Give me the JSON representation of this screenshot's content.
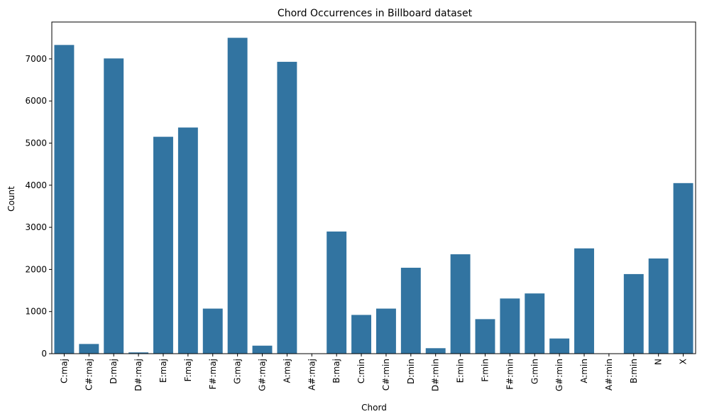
{
  "chart_data": {
    "type": "bar",
    "title": "Chord Occurrences in Billboard dataset",
    "xlabel": "Chord",
    "ylabel": "Count",
    "ylim": [
      0,
      7875
    ],
    "yticks": [
      0,
      1000,
      2000,
      3000,
      4000,
      5000,
      6000,
      7000
    ],
    "bar_color": "#3274a1",
    "grid": false,
    "categories": [
      "C:maj",
      "C#:maj",
      "D:maj",
      "D#:maj",
      "E:maj",
      "F:maj",
      "F#:maj",
      "G:maj",
      "G#:maj",
      "A:maj",
      "A#:maj",
      "B:maj",
      "C:min",
      "C#:min",
      "D:min",
      "D#:min",
      "E:min",
      "F:min",
      "F#:min",
      "G:min",
      "G#:min",
      "A:min",
      "A#:min",
      "B:min",
      "N",
      "X"
    ],
    "values": [
      7330,
      230,
      7010,
      30,
      5150,
      5370,
      1070,
      7500,
      190,
      6930,
      5,
      2900,
      920,
      1070,
      2040,
      130,
      2360,
      820,
      1310,
      1430,
      360,
      2500,
      5,
      1890,
      2260,
      4050
    ]
  }
}
